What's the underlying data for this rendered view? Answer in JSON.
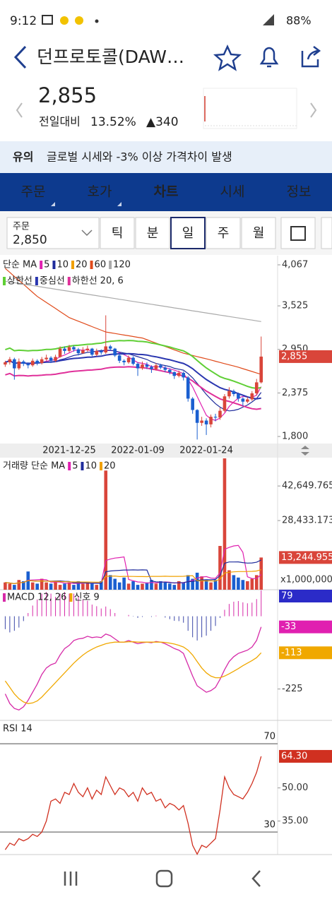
{
  "status_bar": {
    "time": "9:12",
    "battery": "88%"
  },
  "header": {
    "title": "던프로토콜(DAW…"
  },
  "quote": {
    "price": "2,855",
    "change_label": "전일대비",
    "change_pct": "13.52%",
    "change": "▲340"
  },
  "notice": {
    "tag": "유의",
    "text": "글로벌 시세와 -3% 이상 가격차이 발생"
  },
  "tabs": [
    "주문",
    "호가",
    "차트",
    "시세",
    "정보"
  ],
  "active_tab": 2,
  "toolbar": {
    "order_label": "주문",
    "order_price": "2,850",
    "periods": [
      "틱",
      "분",
      "일",
      "주",
      "월"
    ],
    "selected_period": 2
  },
  "chart_data": [
    {
      "type": "candlestick",
      "title": "단순 MA",
      "up_color": "#d9453a",
      "down_color": "#1a5fd0",
      "ma": [
        {
          "name": "5",
          "color": "#e020b0"
        },
        {
          "name": "10",
          "color": "#1f2c9c"
        },
        {
          "name": "20",
          "color": "#f0a000"
        },
        {
          "name": "60",
          "color": "#e04a1a",
          "values": [
            4020,
            3967,
            3914,
            3861,
            3809,
            3756,
            3703,
            3650,
            3610,
            3570,
            3530,
            3490,
            3450,
            3410,
            3370,
            3346,
            3322,
            3299,
            3275,
            3251,
            3227,
            3204,
            3180,
            3170,
            3160,
            3150,
            3140,
            3130,
            3120,
            3110,
            3100,
            3078,
            3056,
            3033,
            3011,
            2989,
            2967,
            2944,
            2922,
            2900,
            2885,
            2870,
            2855,
            2840,
            2825,
            2810,
            2794,
            2778,
            2762,
            2746,
            2731,
            2715,
            2696,
            2677,
            2658,
            2639,
            2620
          ]
        },
        {
          "name": "120",
          "color": "#aaaaaa",
          "values": [
            3850,
            3840,
            3831,
            3821,
            3812,
            3802,
            3793,
            3783,
            3774,
            3764,
            3755,
            3745,
            3736,
            3726,
            3717,
            3707,
            3698,
            3688,
            3679,
            3669,
            3660,
            3650,
            3641,
            3631,
            3622,
            3612,
            3603,
            3593,
            3584,
            3574,
            3565,
            3555,
            3546,
            3536,
            3527,
            3517,
            3508,
            3498,
            3489,
            3479,
            3470,
            3460,
            3451,
            3441,
            3432,
            3422,
            3413,
            3403,
            3394,
            3384,
            3375,
            3365,
            3356,
            3346,
            3337,
            3327,
            3318
          ]
        }
      ],
      "envelope": {
        "names": [
          "상한선",
          "중심선",
          "하한선"
        ],
        "colors": [
          "#5fcf35",
          "#2a36b0",
          "#e0309a"
        ],
        "params": "20, 6"
      },
      "categories": [
        null,
        null,
        null,
        null,
        null,
        null,
        null,
        null,
        null,
        null,
        null,
        null,
        null,
        null,
        "2021-12-25",
        null,
        null,
        null,
        null,
        null,
        null,
        null,
        null,
        null,
        null,
        null,
        null,
        null,
        null,
        "2022-01-09",
        null,
        null,
        null,
        null,
        null,
        null,
        null,
        null,
        null,
        null,
        null,
        null,
        null,
        null,
        "2022-01-24",
        null,
        null,
        null,
        null,
        null,
        null,
        null,
        null,
        null,
        null,
        null,
        null
      ],
      "open": [
        2750,
        2780,
        2820,
        2700,
        2790,
        2760,
        2740,
        2800,
        2770,
        2820,
        2840,
        2800,
        2850,
        2960,
        2930,
        2980,
        2950,
        2900,
        2940,
        2960,
        2880,
        2930,
        2910,
        2990,
        2960,
        2870,
        2800,
        2780,
        2840,
        2760,
        2700,
        2750,
        2720,
        2690,
        2740,
        2710,
        2680,
        2650,
        2600,
        2640,
        2580,
        2300,
        2150,
        1980,
        2010,
        1960,
        2060,
        2050,
        2140,
        2330,
        2400,
        2360,
        2300,
        2260,
        2290,
        2370,
        2515
      ],
      "high": [
        2800,
        2850,
        2840,
        2830,
        2810,
        2780,
        2830,
        2820,
        2850,
        2880,
        2860,
        2880,
        2990,
        2990,
        3010,
        3000,
        2970,
        2980,
        3000,
        2970,
        2960,
        2950,
        3400,
        3010,
        2970,
        2900,
        2820,
        2870,
        2860,
        2780,
        2790,
        2780,
        2740,
        2770,
        2760,
        2730,
        2700,
        2660,
        2670,
        2660,
        2600,
        2320,
        2160,
        2060,
        2040,
        2090,
        2100,
        2180,
        2360,
        2450,
        2420,
        2380,
        2320,
        2320,
        2400,
        2560,
        3120
      ],
      "low": [
        2720,
        2750,
        2550,
        2680,
        2730,
        2700,
        2720,
        2740,
        2750,
        2800,
        2770,
        2780,
        2840,
        2890,
        2910,
        2920,
        2870,
        2890,
        2920,
        2860,
        2860,
        2880,
        2890,
        2930,
        2850,
        2770,
        2740,
        2760,
        2740,
        2600,
        2680,
        2690,
        2640,
        2670,
        2690,
        2650,
        2620,
        2560,
        2580,
        2540,
        2260,
        2100,
        1760,
        1940,
        1820,
        1920,
        2000,
        2020,
        2120,
        2300,
        2330,
        2260,
        2200,
        2240,
        2270,
        2340,
        2500
      ],
      "close": [
        2780,
        2820,
        2700,
        2790,
        2760,
        2740,
        2800,
        2770,
        2820,
        2840,
        2800,
        2850,
        2960,
        2930,
        2980,
        2950,
        2900,
        2940,
        2960,
        2880,
        2930,
        2910,
        2990,
        2960,
        2870,
        2800,
        2780,
        2840,
        2760,
        2700,
        2750,
        2720,
        2690,
        2740,
        2710,
        2680,
        2650,
        2600,
        2640,
        2580,
        2300,
        2150,
        1980,
        2010,
        1960,
        2060,
        2050,
        2140,
        2330,
        2400,
        2360,
        2300,
        2260,
        2290,
        2370,
        2515,
        2855
      ],
      "ylim": [
        1707,
        4188
      ],
      "yticks": [
        {
          "value": 4067,
          "label": "4,067"
        },
        {
          "value": 3525,
          "label": "3,525"
        },
        {
          "value": 2950,
          "label": "2,950"
        },
        {
          "value": 2375,
          "label": "2,375"
        },
        {
          "value": 1800,
          "label": "1,800"
        }
      ],
      "current": {
        "value": 2855,
        "label": "2,855"
      }
    },
    {
      "type": "bar",
      "title": "거래량 단순 MA",
      "ma": [
        {
          "name": "5",
          "color": "#e020b0"
        },
        {
          "name": "10",
          "color": "#1f2c9c"
        },
        {
          "name": "20",
          "color": "#f0a000"
        }
      ],
      "values": [
        3000,
        2500,
        2000,
        4000,
        3500,
        7500,
        3000,
        2500,
        4500,
        3000,
        2500,
        3500,
        2000,
        2500,
        3000,
        2000,
        3500,
        2500,
        3000,
        2500,
        2000,
        3500,
        49000,
        6000,
        4500,
        3000,
        5000,
        2500,
        3500,
        2000,
        2500,
        3000,
        4000,
        2500,
        3500,
        3000,
        2500,
        2000,
        3500,
        3000,
        6000,
        4500,
        7000,
        5500,
        4000,
        3000,
        4000,
        18000,
        54000,
        8000,
        6000,
        5000,
        4000,
        3500,
        4500,
        6000,
        13244.955
      ],
      "ylim": [
        0,
        54300
      ],
      "yticks": [
        {
          "value": 42649.765,
          "label": "42,649.765"
        },
        {
          "value": 28433.173,
          "label": "28,433.173"
        }
      ],
      "current": {
        "value": 13244.955,
        "label": "13,244.955"
      },
      "unit": "x1,000,000"
    },
    {
      "type": "macd",
      "title": "MACD 12, 26",
      "signal_title": "신호 9",
      "series": [
        {
          "color": "#d62aa8",
          "values": [
            -240,
            -270,
            -285,
            -290,
            -280,
            -260,
            -235,
            -210,
            -180,
            -160,
            -150,
            -145,
            -120,
            -100,
            -90,
            -75,
            -70,
            -68,
            -62,
            -66,
            -64,
            -66,
            -55,
            -60,
            -70,
            -80,
            -80,
            -75,
            -80,
            -85,
            -82,
            -80,
            -82,
            -78,
            -80,
            -85,
            -92,
            -100,
            -105,
            -115,
            -150,
            -185,
            -215,
            -225,
            -235,
            -230,
            -220,
            -195,
            -165,
            -140,
            -125,
            -115,
            -110,
            -105,
            -95,
            -75,
            -33
          ]
        },
        {
          "color": "#f0a800",
          "values": [
            -200,
            -220,
            -240,
            -255,
            -265,
            -270,
            -268,
            -262,
            -250,
            -235,
            -220,
            -205,
            -190,
            -175,
            -160,
            -145,
            -132,
            -120,
            -110,
            -102,
            -95,
            -90,
            -85,
            -82,
            -80,
            -80,
            -80,
            -79,
            -79,
            -80,
            -80,
            -80,
            -80,
            -80,
            -80,
            -81,
            -83,
            -86,
            -90,
            -95,
            -105,
            -120,
            -140,
            -160,
            -175,
            -185,
            -190,
            -190,
            -185,
            -178,
            -170,
            -162,
            -153,
            -145,
            -137,
            -128,
            -113
          ]
        }
      ],
      "histogram_colors": [
        "#d62aa8",
        "#3a46a8"
      ],
      "ylim": [
        -322,
        82
      ],
      "yticks": [
        -225
      ],
      "tags": [
        {
          "value": 79,
          "color": "#2b2bc8"
        },
        {
          "value": -33,
          "color": "#e020b0"
        },
        {
          "value": -113,
          "color": "#f0a800"
        }
      ]
    },
    {
      "type": "line",
      "title": "RSI 14",
      "color": "#d03020",
      "values": [
        22,
        25,
        24,
        27,
        26,
        27,
        29,
        28,
        30,
        35,
        44,
        45,
        43,
        48,
        47,
        52,
        48,
        46,
        50,
        45,
        49,
        47,
        55,
        51,
        47,
        50,
        49,
        46,
        48,
        44,
        50,
        47,
        48,
        44,
        45,
        41,
        43,
        42,
        40,
        42,
        34,
        24,
        20,
        24,
        23,
        25,
        27,
        40,
        55,
        50,
        47,
        46,
        45,
        48,
        52,
        57,
        64.3
      ],
      "ylim": [
        19.8,
        80.6
      ],
      "levels": [
        70,
        30
      ],
      "yticks": [
        {
          "value": 50,
          "label": "50.00"
        },
        {
          "value": 35,
          "label": "35.00"
        }
      ],
      "current": {
        "value": 64.3,
        "label": "64.30"
      }
    }
  ]
}
